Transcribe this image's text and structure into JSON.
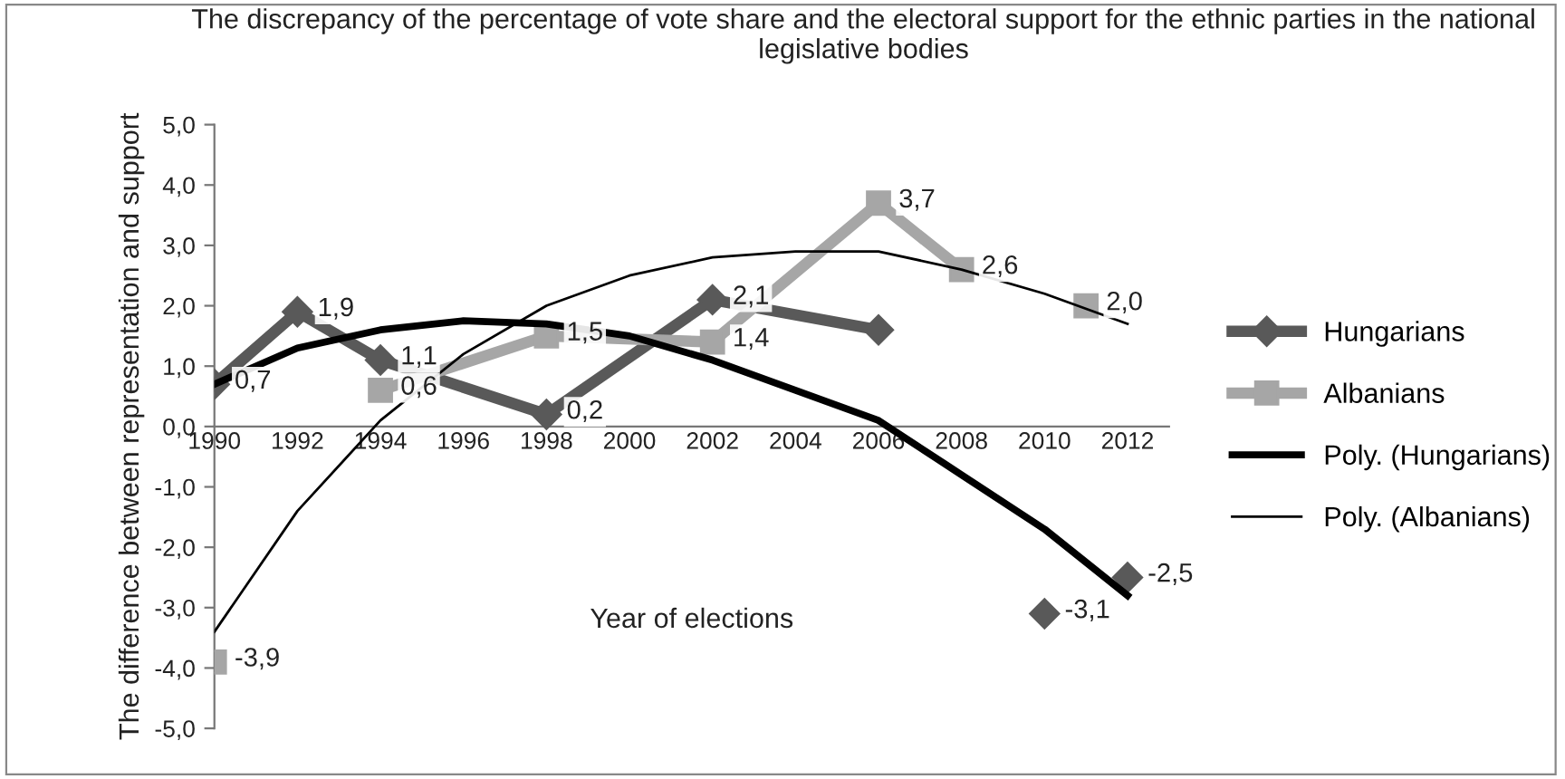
{
  "chart_data": {
    "type": "line",
    "title": "The discrepancy of the percentage of vote share and the electoral support for the ethnic parties in the national legislative bodies",
    "xlabel": "Year of elections",
    "ylabel": "The difference between representation and support",
    "xlim": [
      1990,
      2013
    ],
    "xticks": [
      1990,
      1992,
      1994,
      1996,
      1998,
      2000,
      2002,
      2004,
      2006,
      2008,
      2010,
      2012
    ],
    "ylim": [
      -5,
      5
    ],
    "yticks": [
      {
        "value": -5,
        "label": "-5,0"
      },
      {
        "value": -4,
        "label": "-4,0"
      },
      {
        "value": -3,
        "label": "-3,0"
      },
      {
        "value": -2,
        "label": "-2,0"
      },
      {
        "value": -1,
        "label": "-1,0"
      },
      {
        "value": 0,
        "label": "0,0"
      },
      {
        "value": 1,
        "label": "1,0"
      },
      {
        "value": 2,
        "label": "2,0"
      },
      {
        "value": 3,
        "label": "3,0"
      },
      {
        "value": 4,
        "label": "4,0"
      },
      {
        "value": 5,
        "label": "5,0"
      }
    ],
    "grid": false,
    "legend": "right",
    "series": [
      {
        "name": "Hungarians",
        "color": "#595959",
        "marker": "diamond",
        "x": [
          1990,
          1992,
          1994,
          1998,
          2002,
          2006,
          2008,
          2010,
          2011,
          2012
        ],
        "values": [
          0.7,
          1.9,
          1.1,
          0.2,
          2.1,
          1.6,
          null,
          -3.1,
          null,
          -2.5
        ],
        "value_labels": [
          "0,7",
          "1,9",
          "1,1",
          "0,2",
          "2,1",
          null,
          null,
          "-3,1",
          null,
          "-2,5"
        ]
      },
      {
        "name": "Albanians",
        "color": "#a6a6a6",
        "marker": "square",
        "x": [
          1990,
          1992,
          1994,
          1998,
          2002,
          2006,
          2008,
          2010,
          2011
        ],
        "values": [
          -3.9,
          null,
          0.6,
          1.5,
          1.4,
          3.7,
          2.6,
          null,
          2.0
        ],
        "value_labels": [
          "-3,9",
          null,
          "0,6",
          "1,5",
          "1,4",
          "3,7",
          "2,6",
          null,
          "2,0"
        ]
      },
      {
        "name": "Poly. (Hungarians)",
        "color": "#000000",
        "marker": "none",
        "x": [
          1990,
          1992,
          1994,
          1996,
          1998,
          2000,
          2002,
          2004,
          2006,
          2008,
          2010,
          2012
        ],
        "values": [
          0.7,
          1.3,
          1.6,
          1.75,
          1.7,
          1.5,
          1.1,
          0.6,
          0.1,
          -0.8,
          -1.7,
          -2.8
        ]
      },
      {
        "name": "Poly. (Albanians)",
        "color": "#000000",
        "marker": "none",
        "x": [
          1990,
          1992,
          1994,
          1996,
          1998,
          2000,
          2002,
          2004,
          2006,
          2008,
          2010,
          2012
        ],
        "values": [
          -3.4,
          -1.4,
          0.1,
          1.2,
          2.0,
          2.5,
          2.8,
          2.9,
          2.9,
          2.6,
          2.2,
          1.7
        ]
      }
    ]
  }
}
